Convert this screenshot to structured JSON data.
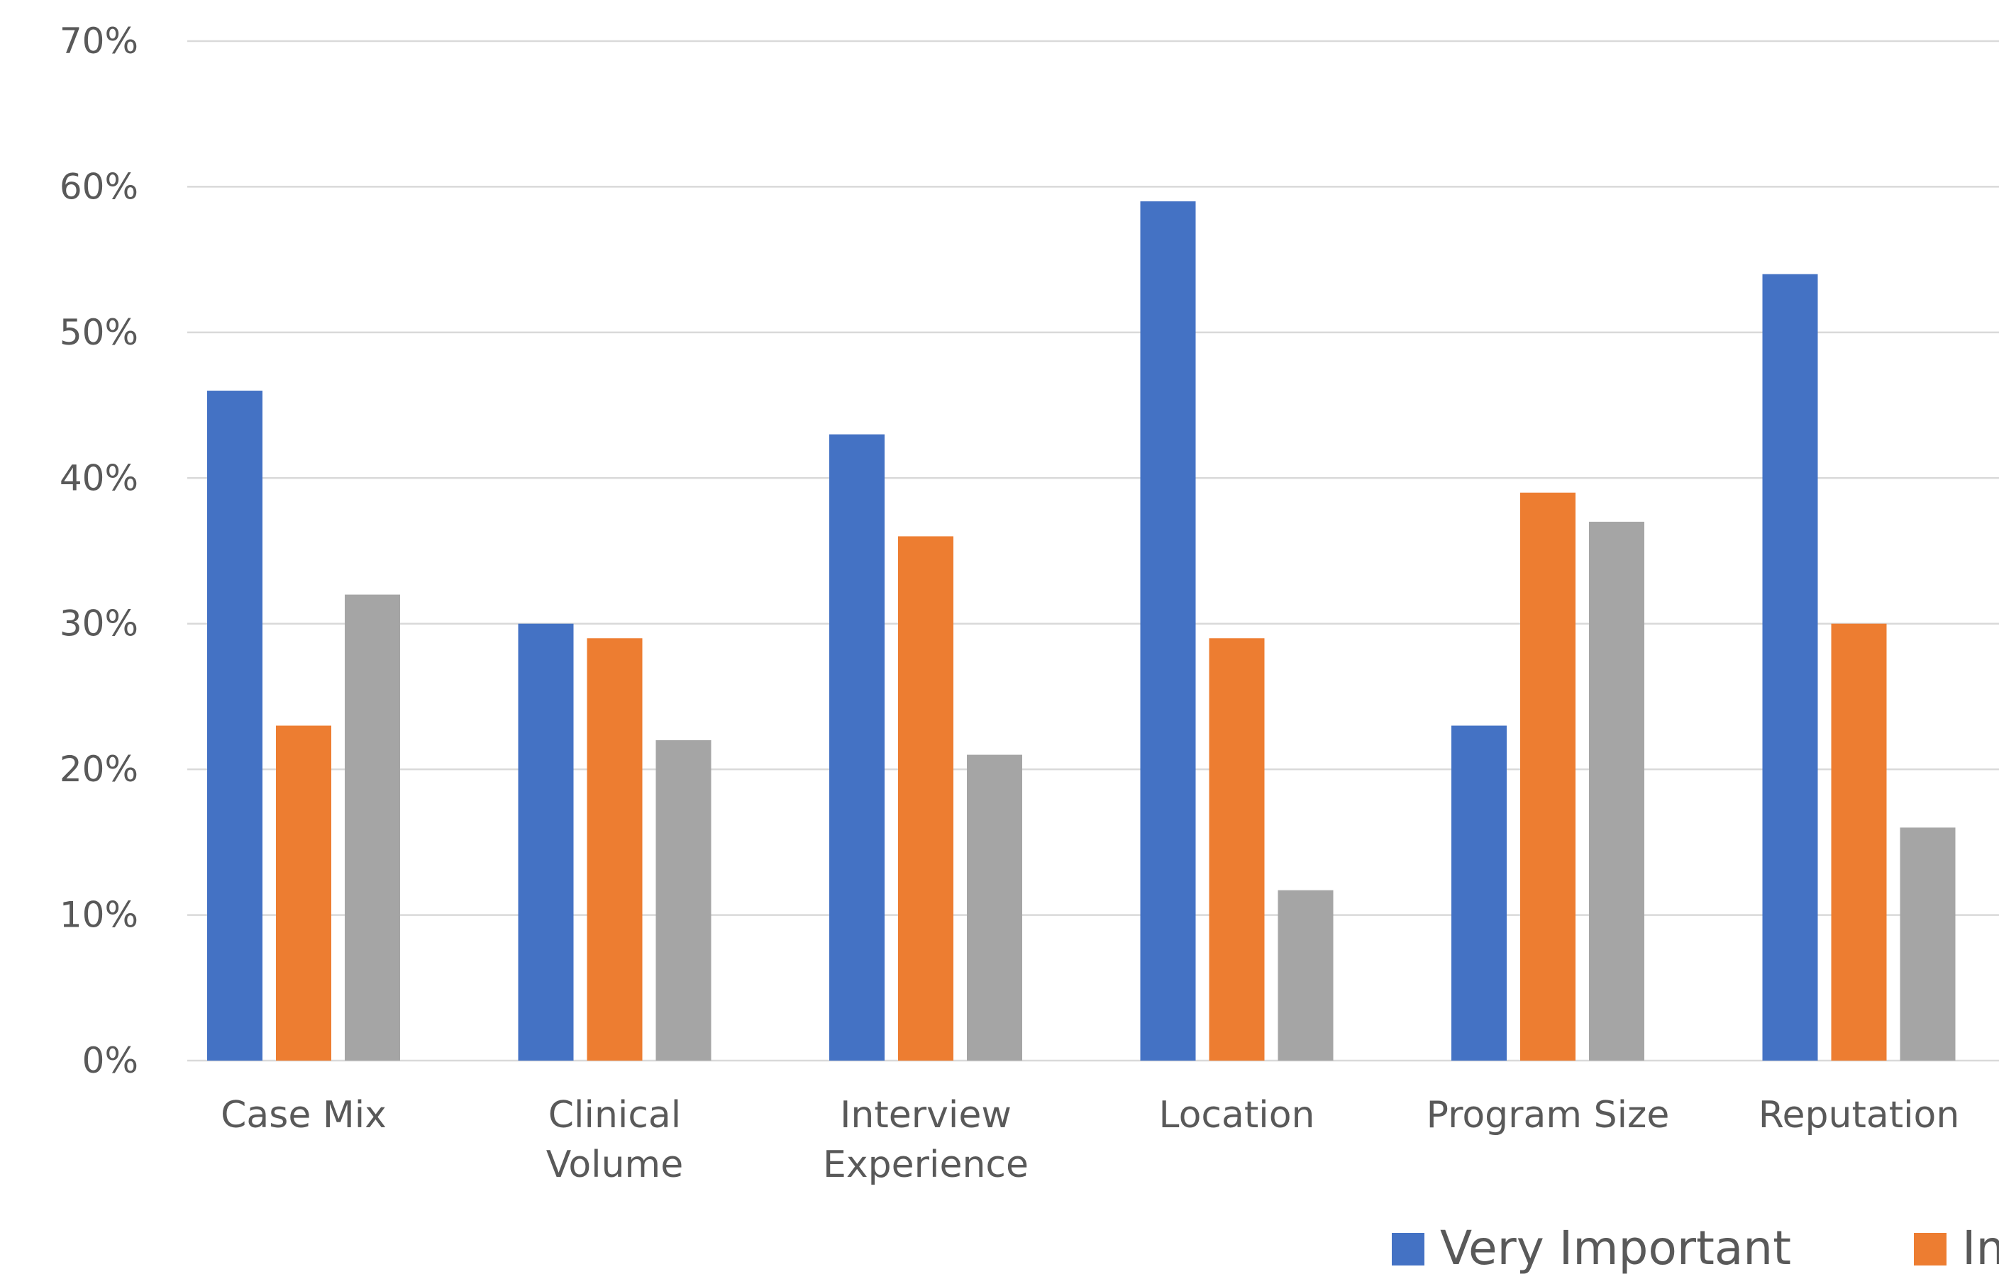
{
  "chart_data": {
    "type": "bar",
    "title": "",
    "xlabel": "",
    "ylabel": "",
    "ylim": [
      0,
      70
    ],
    "y_tick_format": "percent",
    "y_ticks": [
      {
        "value": 0,
        "label": "0%"
      },
      {
        "value": 10,
        "label": "10%"
      },
      {
        "value": 20,
        "label": "20%"
      },
      {
        "value": 30,
        "label": "30%"
      },
      {
        "value": 40,
        "label": "40%"
      },
      {
        "value": 50,
        "label": "50%"
      },
      {
        "value": 60,
        "label": "60%"
      },
      {
        "value": 70,
        "label": "70%"
      }
    ],
    "grid": true,
    "legend": "bottom",
    "categories": [
      {
        "lines": [
          "Case Mix"
        ]
      },
      {
        "lines": [
          "Clinical",
          "Volume"
        ]
      },
      {
        "lines": [
          "Interview",
          "Experience"
        ]
      },
      {
        "lines": [
          "Location"
        ]
      },
      {
        "lines": [
          "Program Size"
        ]
      },
      {
        "lines": [
          "Reputation"
        ]
      }
    ],
    "series": [
      {
        "name": "Very Important",
        "color": "#4472C4",
        "values": [
          46,
          30,
          43,
          59,
          23,
          54
        ]
      },
      {
        "name": "Im",
        "color": "#ED7D31",
        "values": [
          23,
          29,
          36,
          29,
          39,
          30
        ]
      },
      {
        "color": "#A5A5A5",
        "values": [
          32,
          22,
          21,
          11.7,
          37,
          16
        ]
      }
    ]
  }
}
